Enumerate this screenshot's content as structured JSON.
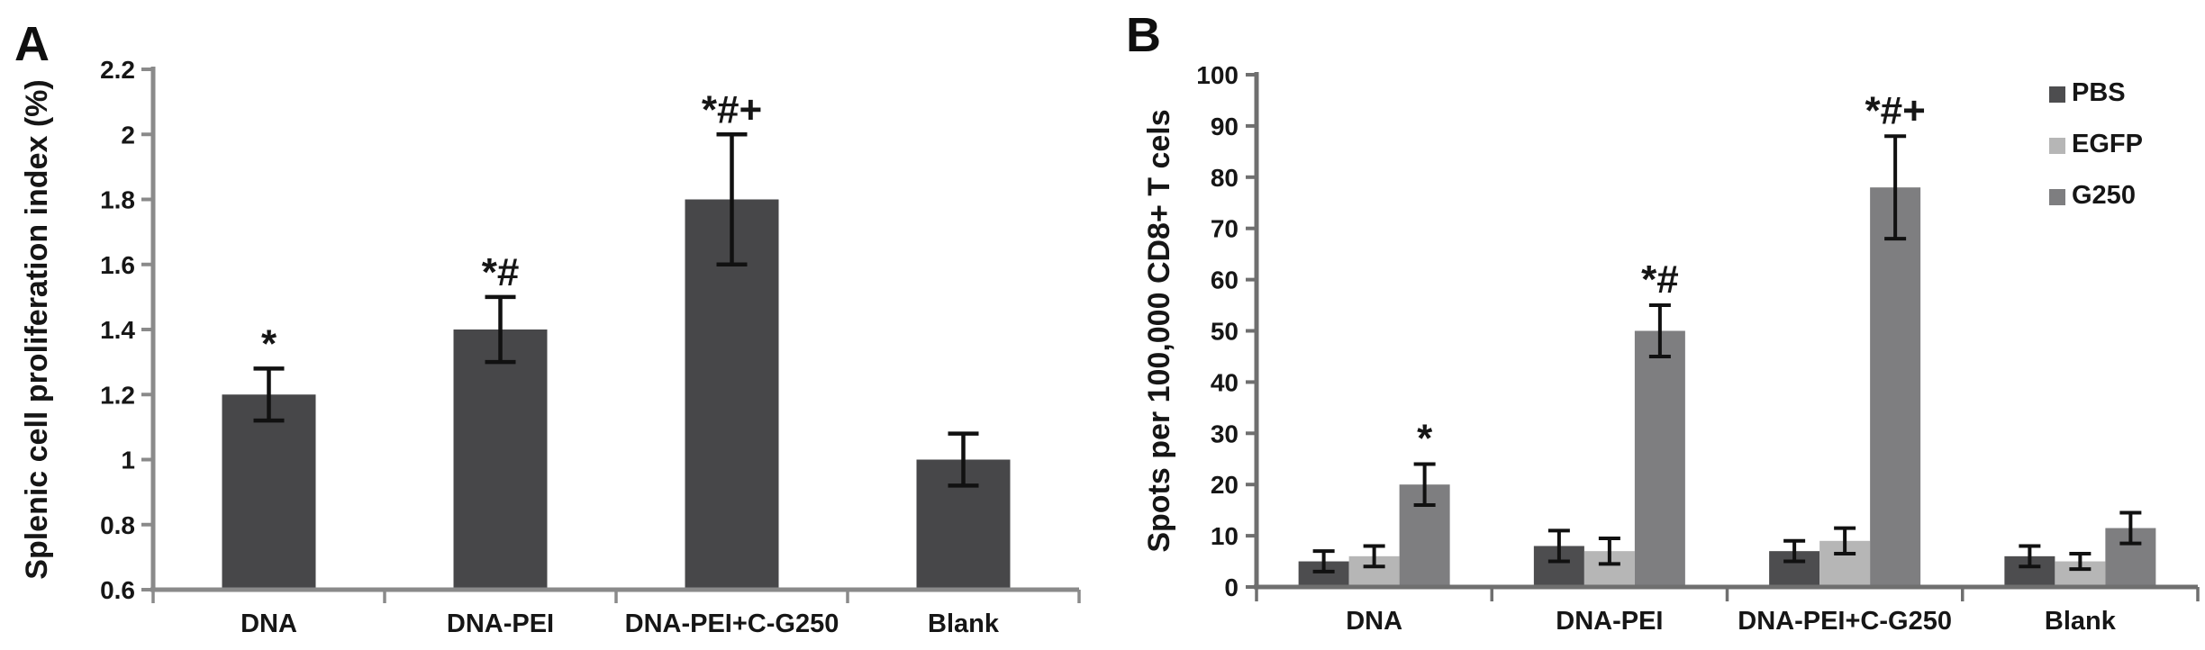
{
  "figure": {
    "panels": [
      {
        "letter": "A"
      },
      {
        "letter": "B"
      }
    ]
  },
  "chart_data": [
    {
      "panel": "A",
      "type": "bar",
      "title": "",
      "xlabel": "",
      "ylabel": "Splenic cell proliferation index (%)",
      "categories": [
        "DNA",
        "DNA-PEI",
        "DNA-PEI+C-G250",
        "Blank"
      ],
      "values": [
        1.2,
        1.4,
        1.8,
        1.0
      ],
      "errors": [
        0.08,
        0.1,
        0.2,
        0.08
      ],
      "annotations": [
        "*",
        "*#",
        "*#+",
        ""
      ],
      "ylim": [
        0.6,
        2.2
      ],
      "ytick_values": [
        0.6,
        0.8,
        1.0,
        1.2,
        1.4,
        1.6,
        1.8,
        2.0,
        2.2
      ],
      "ytick_labels": [
        "0.6",
        "0.8",
        "1",
        "1.2",
        "1.4",
        "1.6",
        "1.8",
        "2",
        "2.2"
      ],
      "bar_color": "#474749",
      "error_color": "#111111",
      "grid": false,
      "legend": null
    },
    {
      "panel": "B",
      "type": "bar",
      "title": "",
      "xlabel": "",
      "ylabel": "Spots per 100,000 CD8+ T cels",
      "categories": [
        "DNA",
        "DNA-PEI",
        "DNA-PEI+C-G250",
        "Blank"
      ],
      "series": [
        {
          "name": "PBS",
          "color": "#4d4d4f",
          "values": [
            5,
            8,
            7,
            6
          ],
          "errors": [
            2,
            3,
            2,
            2
          ]
        },
        {
          "name": "EGFP",
          "color": "#b6b6b6",
          "values": [
            6,
            7,
            9,
            5
          ],
          "errors": [
            2,
            2.5,
            2.5,
            1.5
          ]
        },
        {
          "name": "G250",
          "color": "#7e7e80",
          "values": [
            20,
            50,
            78,
            11.5
          ],
          "errors": [
            4,
            5,
            10,
            3
          ]
        }
      ],
      "annotations": [
        "*",
        "*#",
        "*#+",
        ""
      ],
      "annotation_series": "G250",
      "ylim": [
        0,
        100
      ],
      "ytick_values": [
        0,
        10,
        20,
        30,
        40,
        50,
        60,
        70,
        80,
        90,
        100
      ],
      "ytick_labels": [
        "0",
        "10",
        "20",
        "30",
        "40",
        "50",
        "60",
        "70",
        "80",
        "90",
        "100"
      ],
      "error_color": "#111111",
      "grid": false,
      "legend": {
        "position": "top-right",
        "entries": [
          "PBS",
          "EGFP",
          "G250"
        ]
      }
    }
  ]
}
